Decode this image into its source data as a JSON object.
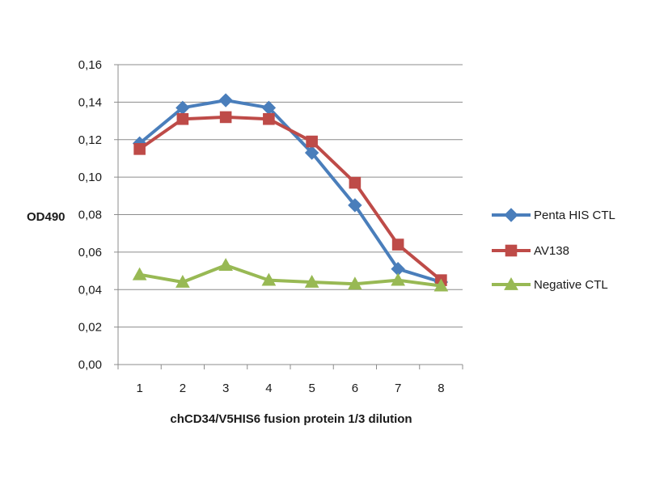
{
  "chart_data": {
    "type": "line",
    "title": "",
    "xlabel": "chCD34/V5HIS6 fusion protein 1/3 dilution",
    "ylabel": "OD490",
    "categories": [
      "1",
      "2",
      "3",
      "4",
      "5",
      "6",
      "7",
      "8"
    ],
    "ylim": [
      0,
      0.16
    ],
    "yticks": [
      "0,00",
      "0,02",
      "0,04",
      "0,06",
      "0,08",
      "0,10",
      "0,12",
      "0,14",
      "0,16"
    ],
    "grid": "horizontal",
    "legend_position": "right",
    "series": [
      {
        "name": "Penta HIS CTL",
        "color": "#4a7ebb",
        "marker": "diamond",
        "values": [
          0.118,
          0.137,
          0.141,
          0.137,
          0.113,
          0.085,
          0.051,
          0.044
        ]
      },
      {
        "name": "AV138",
        "color": "#be4b48",
        "marker": "square",
        "values": [
          0.115,
          0.131,
          0.132,
          0.131,
          0.119,
          0.097,
          0.064,
          0.045
        ]
      },
      {
        "name": "Negative CTL",
        "color": "#98b954",
        "marker": "triangle",
        "values": [
          0.048,
          0.044,
          0.053,
          0.045,
          0.044,
          0.043,
          0.045,
          0.042
        ]
      }
    ]
  }
}
